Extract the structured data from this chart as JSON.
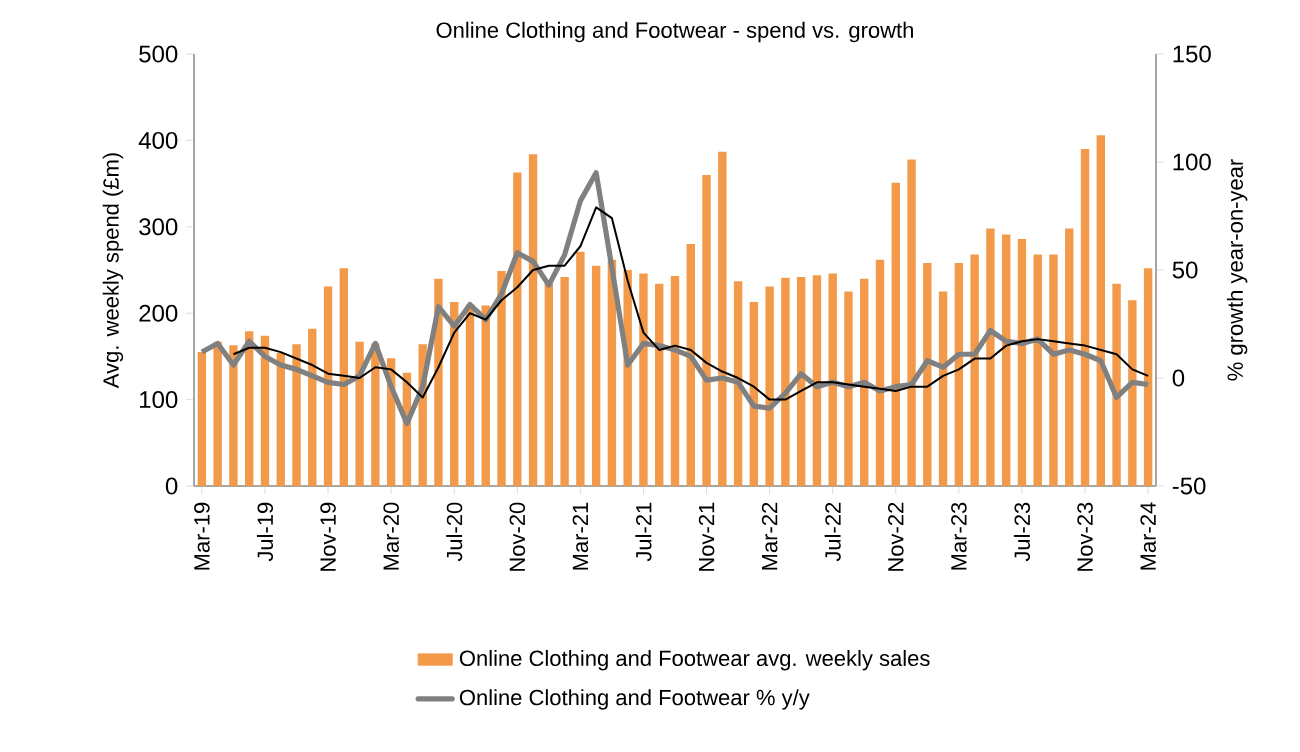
{
  "chart_data": {
    "type": "bar",
    "title": "Online Clothing and Footwear - spend vs. growth",
    "ylabel": "Avg. weekly spend (£m)",
    "y2label": "% growth year-on-year",
    "categories": [
      "Mar-19",
      null,
      null,
      null,
      "Jul-19",
      null,
      null,
      null,
      "Nov-19",
      null,
      null,
      null,
      "Mar-20",
      null,
      null,
      null,
      "Jul-20",
      null,
      null,
      null,
      "Nov-20",
      null,
      null,
      null,
      "Mar-21",
      null,
      null,
      null,
      "Jul-21",
      null,
      null,
      null,
      "Nov-21",
      null,
      null,
      null,
      "Mar-22",
      null,
      null,
      null,
      "Jul-22",
      null,
      null,
      null,
      "Nov-22",
      null,
      null,
      null,
      "Mar-23",
      null,
      null,
      null,
      "Jul-23",
      null,
      null,
      null,
      "Nov-23",
      null,
      null,
      null,
      "Mar-24"
    ],
    "series": [
      {
        "name": "Online Clothing and Footwear avg. weekly sales",
        "color": "#f39a4a",
        "values": [
          155,
          167,
          163,
          179,
          174,
          154,
          164,
          182,
          231,
          252,
          167,
          165,
          148,
          131,
          164,
          240,
          213,
          210,
          209,
          249,
          363,
          384,
          235,
          242,
          271,
          255,
          262,
          250,
          246,
          234,
          243,
          280,
          360,
          387,
          237,
          213,
          231,
          241,
          242,
          244,
          246,
          225,
          240,
          262,
          351,
          378,
          258,
          225,
          258,
          268,
          298,
          291,
          286,
          268,
          268,
          298,
          390,
          406,
          234,
          215,
          252
        ]
      },
      {
        "type": "line",
        "axis": "y2",
        "name": "Online Clothing and Footwear % y/y",
        "color": "#808080",
        "values": [
          12,
          16,
          6,
          17,
          10,
          6,
          4,
          1,
          -2,
          -3,
          1,
          16,
          -4,
          -21,
          -4,
          33,
          24,
          34,
          27,
          39,
          58,
          54,
          43,
          57,
          82,
          95,
          51,
          6,
          16,
          15,
          13,
          10,
          -1,
          0,
          -2,
          -13,
          -14,
          -7,
          2,
          -4,
          -2,
          -4,
          -2,
          -6,
          -4,
          -3,
          8,
          5,
          11,
          11,
          22,
          17,
          16,
          18,
          11,
          13,
          11,
          8,
          -9,
          -2,
          -3
        ]
      },
      {
        "type": "line",
        "axis": "y2",
        "color": "#000000",
        "values": [
          null,
          null,
          11,
          14,
          14,
          12,
          9,
          6,
          2,
          1,
          0,
          5,
          4,
          -2,
          -9,
          5,
          21,
          30,
          27,
          36,
          42,
          50,
          52,
          52,
          61,
          79,
          74,
          45,
          21,
          13,
          15,
          13,
          7,
          3,
          0,
          -4,
          -10,
          -10,
          -6,
          -2,
          -2,
          -3,
          -4,
          -5,
          -6,
          -4,
          -4,
          1,
          4,
          9,
          9,
          15,
          17,
          18,
          17,
          16,
          15,
          13,
          11,
          4,
          1
        ]
      }
    ],
    "ylim": [
      0,
      500
    ],
    "yticks": [
      0,
      100,
      200,
      300,
      400,
      500
    ],
    "y2lim": [
      -50,
      150
    ],
    "y2ticks": [
      -50,
      0,
      50,
      100,
      150
    ],
    "legend": "bottom",
    "grid": false
  }
}
